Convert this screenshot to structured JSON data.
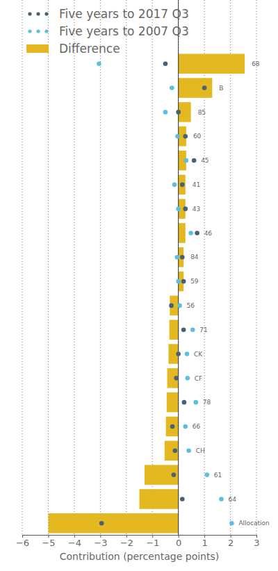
{
  "chart_data": {
    "type": "bar",
    "orientation": "horizontal",
    "xlabel": "Contribution (percentage points)",
    "categories": [
      "68",
      "B",
      "85",
      "60",
      "45",
      "41",
      "43",
      "46",
      "84",
      "59",
      "56",
      "71",
      "CK",
      "CF",
      "78",
      "66",
      "CH",
      "61",
      "64",
      "Allocation"
    ],
    "series": [
      {
        "name": "Five years to 2017 Q3",
        "type": "scatter",
        "marker": "circle",
        "color": "#4a6172",
        "values": [
          -0.5,
          1.0,
          0,
          0.27,
          0.6,
          0.15,
          0.27,
          0.72,
          0.15,
          0.2,
          -0.27,
          0.2,
          0,
          -0.08,
          0.22,
          -0.23,
          -0.13,
          -0.18,
          0.15,
          -2.95
        ]
      },
      {
        "name": "Five years to 2007 Q3",
        "type": "scatter",
        "marker": "circle",
        "color": "#5bc0de",
        "values": [
          -3.05,
          -0.25,
          -0.5,
          -0.03,
          0.3,
          -0.15,
          0,
          0.48,
          -0.05,
          0,
          0.05,
          0.55,
          0.33,
          0.35,
          0.67,
          0.27,
          0.4,
          1.1,
          1.65,
          2.05
        ]
      },
      {
        "name": "Difference",
        "type": "bar",
        "color": "#e3b820",
        "values": [
          2.55,
          1.3,
          0.48,
          0.3,
          0.3,
          0.27,
          0.27,
          0.27,
          0.2,
          0.2,
          -0.33,
          -0.35,
          -0.38,
          -0.43,
          -0.45,
          -0.48,
          -0.53,
          -1.3,
          -1.5,
          -5.0
        ]
      }
    ],
    "xlim": [
      -6,
      3
    ],
    "xticks": [
      {
        "value": -6,
        "label": "−6"
      },
      {
        "value": -5,
        "label": "−5"
      },
      {
        "value": -4,
        "label": "−4"
      },
      {
        "value": -3,
        "label": "−3"
      },
      {
        "value": -2,
        "label": "−2"
      },
      {
        "value": -1,
        "label": "−1"
      },
      0,
      1,
      2,
      3
    ],
    "grid": true,
    "legend": "top-left"
  }
}
